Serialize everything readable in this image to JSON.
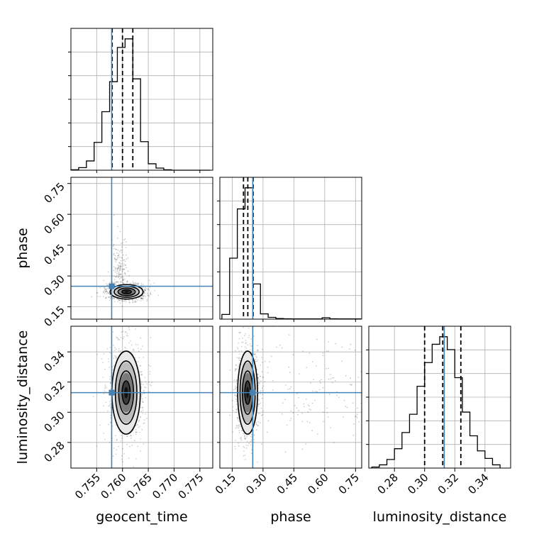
{
  "chart_data": {
    "type": "corner",
    "grid": true,
    "parameters": [
      {
        "key": "geocent_time",
        "label": "geocent_time",
        "range": [
          0.75,
          0.7775
        ],
        "ticks": [
          0.755,
          0.76,
          0.765,
          0.77,
          0.775
        ],
        "tick_labels": [
          "0.755",
          "0.760",
          "0.765",
          "0.770",
          "0.775"
        ]
      },
      {
        "key": "phase",
        "label": "phase",
        "range": [
          0.09,
          0.78
        ],
        "ticks": [
          0.15,
          0.3,
          0.45,
          0.6,
          0.75
        ],
        "tick_labels": [
          "0.15",
          "0.30",
          "0.45",
          "0.60",
          "0.75"
        ]
      },
      {
        "key": "luminosity_distance",
        "label": "luminosity_distance",
        "range": [
          0.263,
          0.357
        ],
        "ticks": [
          0.28,
          0.3,
          0.32,
          0.34
        ],
        "tick_labels": [
          "0.28",
          "0.30",
          "0.32",
          "0.34"
        ]
      }
    ],
    "truth": {
      "geocent_time": 0.7579,
      "phase": 0.25,
      "luminosity_distance": 0.313
    },
    "quantiles": {
      "geocent_time": [
        0.758,
        0.76,
        0.762
      ],
      "phase": [
        0.205,
        0.226,
        0.252
      ],
      "luminosity_distance": [
        0.3,
        0.312,
        0.324
      ]
    },
    "histograms": [
      {
        "param": "geocent_time",
        "edges": [
          0.75,
          0.7515,
          0.753,
          0.7545,
          0.756,
          0.7575,
          0.759,
          0.7605,
          0.762,
          0.7635,
          0.765,
          0.7665,
          0.768,
          0.7695,
          0.771,
          0.7725,
          0.774,
          0.7755,
          0.777
        ],
        "counts": [
          0.3,
          1.8,
          6.5,
          19.5,
          41,
          62,
          86,
          92,
          64,
          20,
          4.5,
          1.5,
          0.3,
          0,
          0,
          0,
          0,
          0
        ]
      },
      {
        "param": "phase",
        "edges": [
          0.1,
          0.1375,
          0.175,
          0.2125,
          0.25,
          0.2875,
          0.325,
          0.3625,
          0.4,
          0.4375,
          0.475,
          0.5125,
          0.55,
          0.5875,
          0.625,
          0.6625,
          0.7,
          0.7375,
          0.775
        ],
        "counts": [
          4,
          52,
          94,
          112,
          30,
          4.5,
          1.5,
          0.5,
          0.3,
          0.2,
          0.2,
          0.2,
          0.2,
          1.2,
          0.3,
          0.2,
          0.2,
          0.2
        ]
      },
      {
        "param": "luminosity_distance",
        "edges": [
          0.265,
          0.27,
          0.275,
          0.28,
          0.285,
          0.29,
          0.295,
          0.3,
          0.305,
          0.31,
          0.315,
          0.32,
          0.325,
          0.33,
          0.335,
          0.34,
          0.345,
          0.35
        ],
        "counts": [
          1,
          3,
          8,
          18,
          33,
          50,
          76,
          98,
          115,
          122,
          110,
          84,
          52,
          30,
          16,
          9,
          3
        ]
      }
    ],
    "joint_2d": [
      {
        "x": "geocent_time",
        "y": "phase",
        "center": [
          0.7608,
          0.223
        ],
        "spread": [
          0.00145,
          0.016
        ],
        "contours_sigma": [
          0.5,
          1.0,
          1.5,
          2.0
        ],
        "outliers": "vertical plume toward phase 0.75 near geocent_time 0.758"
      },
      {
        "x": "geocent_time",
        "y": "luminosity_distance",
        "center": [
          0.7607,
          0.313
        ],
        "spread": [
          0.00125,
          0.0125
        ],
        "contours_sigma": [
          0.5,
          1.0,
          1.5,
          2.0
        ]
      },
      {
        "x": "phase",
        "y": "luminosity_distance",
        "center": [
          0.225,
          0.313
        ],
        "spread": [
          0.022,
          0.0125
        ],
        "contours_sigma": [
          0.5,
          1.0,
          1.5,
          2.0
        ],
        "outliers": "sparse scatter toward phase 0.75"
      }
    ],
    "colors": {
      "truth": "#4682b4",
      "hist": "#000000",
      "quantile": "#000000",
      "grid": "#b0b0b0"
    }
  }
}
